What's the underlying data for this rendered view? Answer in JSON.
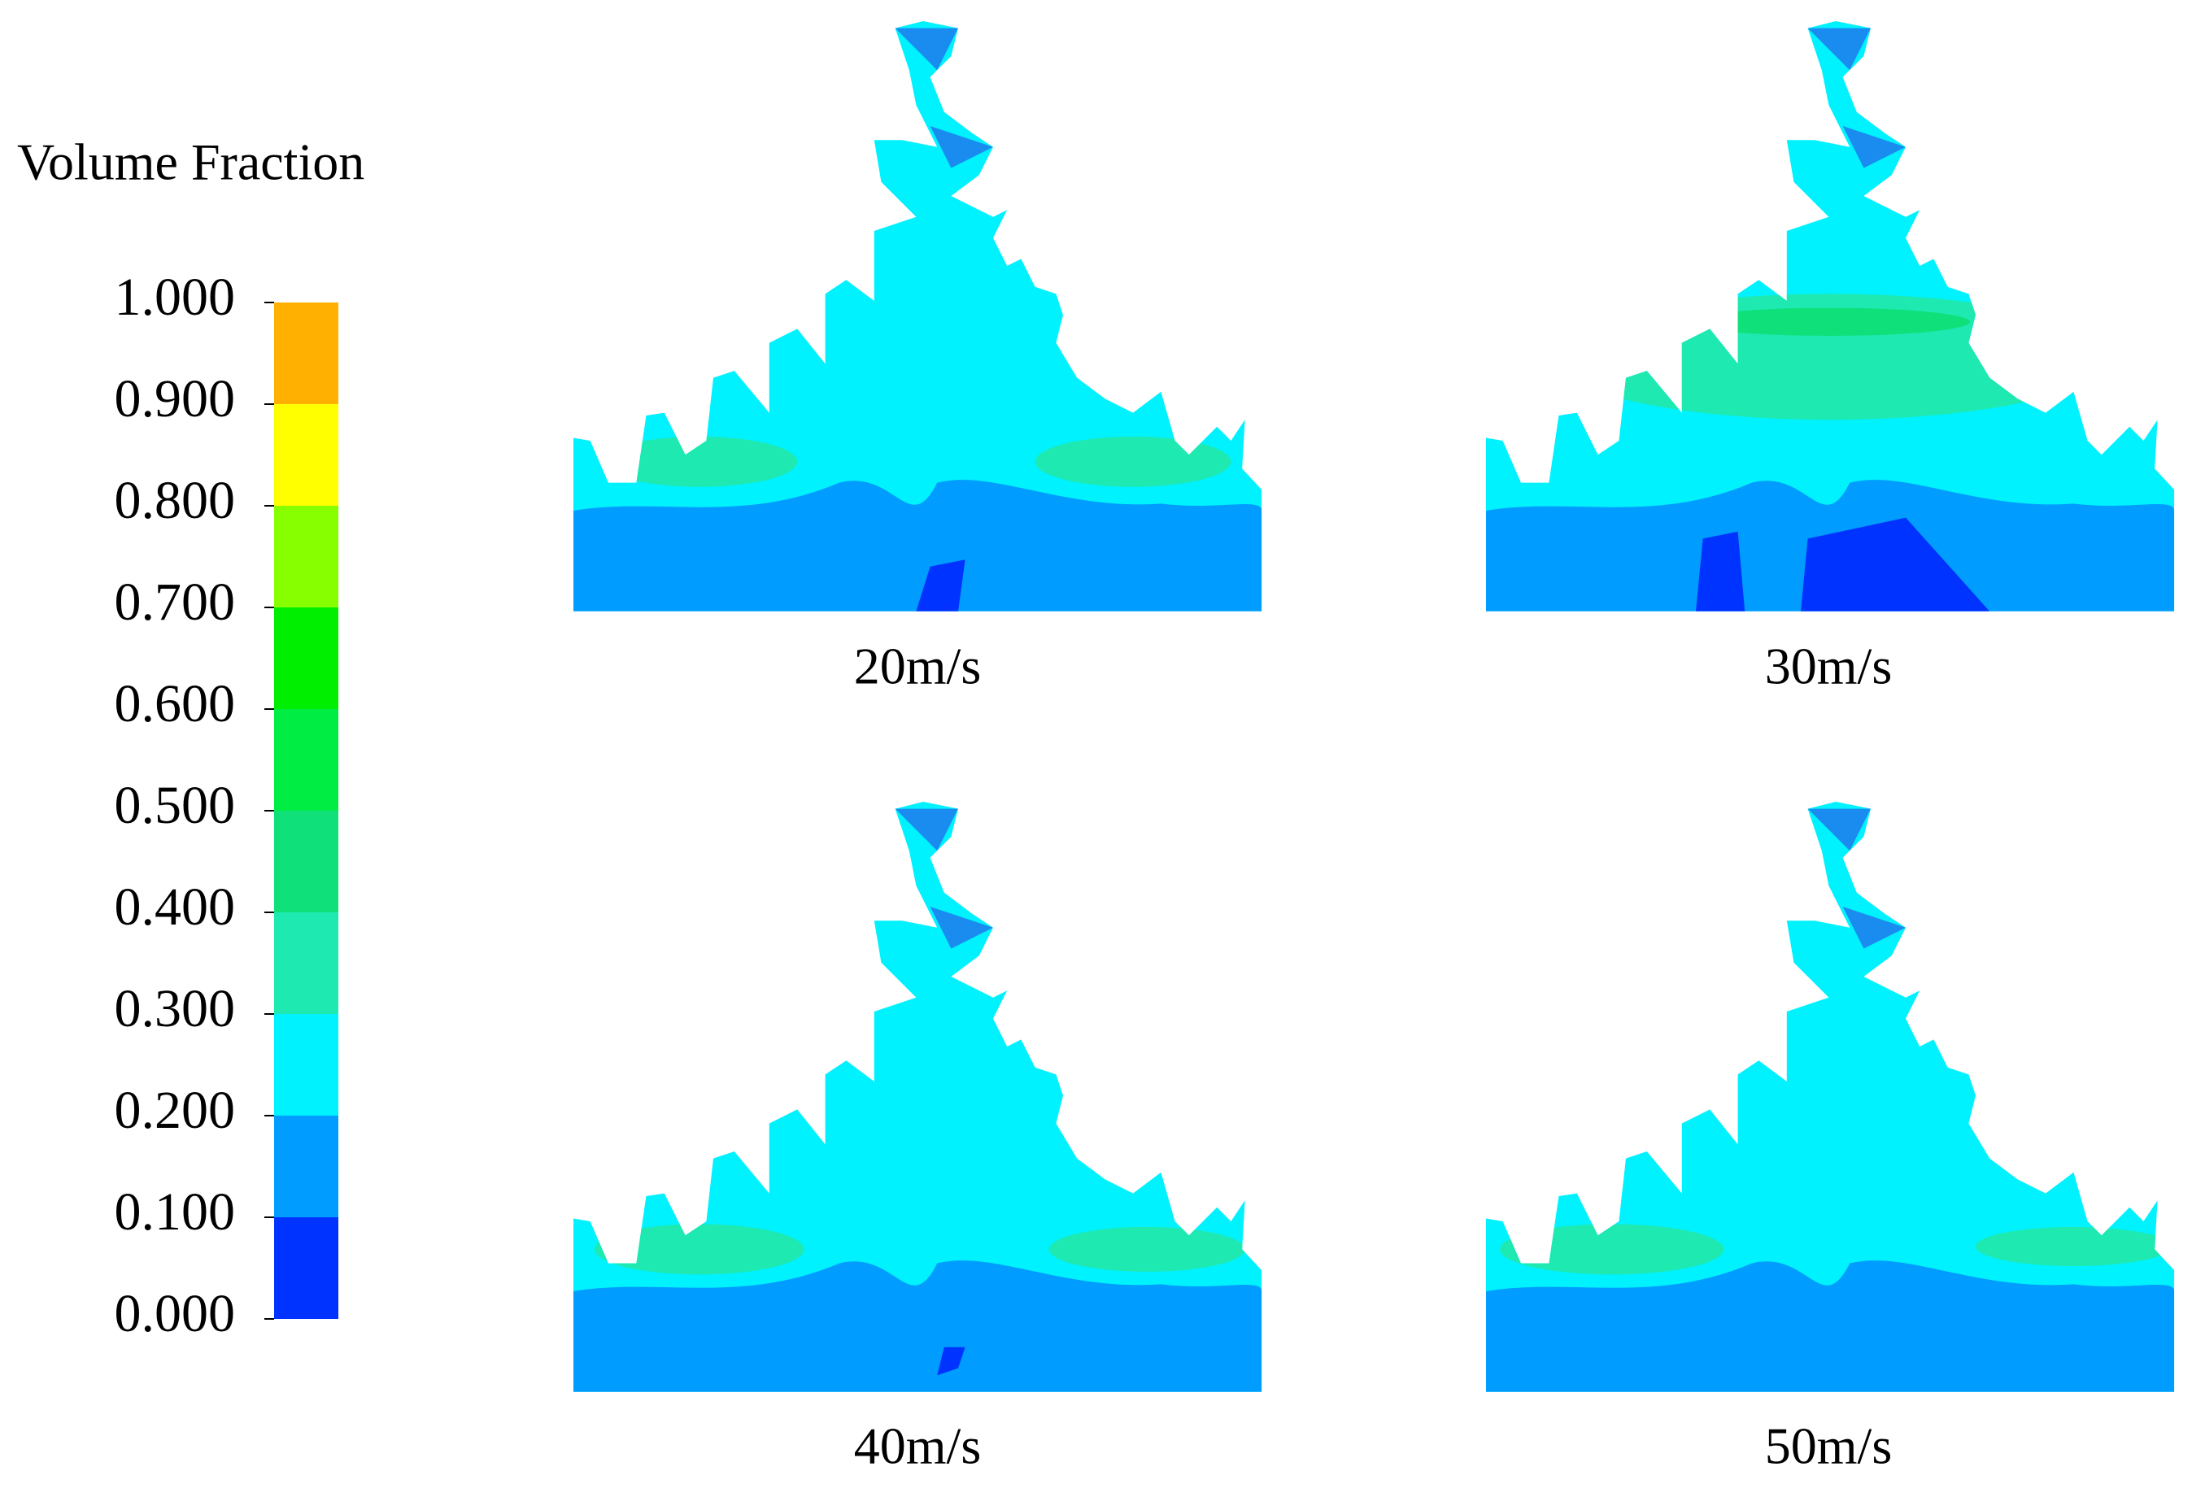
{
  "legend": {
    "title": "Volume Fraction",
    "ticks": [
      {
        "value": 0,
        "label": "0.000"
      },
      {
        "value": 0.1,
        "label": "0.100"
      },
      {
        "value": 0.2,
        "label": "0.200"
      },
      {
        "value": 0.3,
        "label": "0.300"
      },
      {
        "value": 0.4,
        "label": "0.400"
      },
      {
        "value": 0.5,
        "label": "0.500"
      },
      {
        "value": 0.6,
        "label": "0.600"
      },
      {
        "value": 0.7,
        "label": "0.700"
      },
      {
        "value": 0.8,
        "label": "0.800"
      },
      {
        "value": 0.9,
        "label": "0.900"
      },
      {
        "value": 1,
        "label": "1.000"
      }
    ],
    "colors": [
      "#0033ff",
      "#009cff",
      "#00f2ff",
      "#1de9b0",
      "#10e07a",
      "#00ee44",
      "#00ee00",
      "#88ff00",
      "#ffff00",
      "#ffb000",
      "#ff4800"
    ]
  },
  "panels": [
    {
      "label": "20m/s"
    },
    {
      "label": "30m/s"
    },
    {
      "label": "40m/s"
    },
    {
      "label": "50m/s"
    }
  ]
}
